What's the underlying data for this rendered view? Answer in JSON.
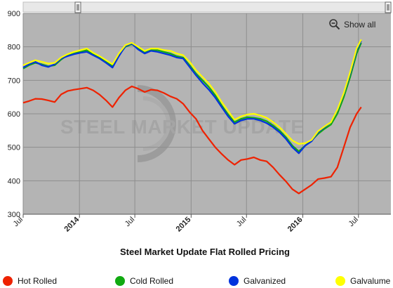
{
  "chart_data": {
    "type": "line",
    "title": "Steel Market Update Flat Rolled Pricing",
    "xlabel": "",
    "ylabel": "",
    "ylim": [
      300,
      900
    ],
    "y_ticks": [
      300,
      400,
      500,
      600,
      700,
      800,
      900
    ],
    "x_ticks": [
      {
        "label": "Jul",
        "date": "2013-07-01",
        "major": false
      },
      {
        "label": "2014",
        "date": "2014-01-01",
        "major": true
      },
      {
        "label": "Jul",
        "date": "2014-07-01",
        "major": false
      },
      {
        "label": "2015",
        "date": "2015-01-01",
        "major": true
      },
      {
        "label": "Jul",
        "date": "2015-07-01",
        "major": false
      },
      {
        "label": "2016",
        "date": "2016-01-01",
        "major": true
      },
      {
        "label": "Jul",
        "date": "2016-07-01",
        "major": false
      }
    ],
    "xlim": [
      "2013-07-01",
      "2016-10-15"
    ],
    "grid": true,
    "legend_position": "bottom",
    "series": [
      {
        "name": "Hot Rolled",
        "color": "#ee2200",
        "points": [
          [
            "2013-07-01",
            633
          ],
          [
            "2013-07-20",
            638
          ],
          [
            "2013-08-10",
            645
          ],
          [
            "2013-08-31",
            644
          ],
          [
            "2013-09-21",
            640
          ],
          [
            "2013-10-12",
            635
          ],
          [
            "2013-11-02",
            658
          ],
          [
            "2013-11-23",
            668
          ],
          [
            "2013-12-14",
            672
          ],
          [
            "2014-01-04",
            675
          ],
          [
            "2014-01-25",
            678
          ],
          [
            "2014-02-15",
            670
          ],
          [
            "2014-03-08",
            657
          ],
          [
            "2014-03-29",
            640
          ],
          [
            "2014-04-19",
            620
          ],
          [
            "2014-05-10",
            648
          ],
          [
            "2014-05-31",
            670
          ],
          [
            "2014-06-21",
            682
          ],
          [
            "2014-07-12",
            675
          ],
          [
            "2014-08-02",
            665
          ],
          [
            "2014-08-23",
            672
          ],
          [
            "2014-09-13",
            670
          ],
          [
            "2014-10-04",
            662
          ],
          [
            "2014-10-25",
            652
          ],
          [
            "2014-11-15",
            645
          ],
          [
            "2014-12-06",
            630
          ],
          [
            "2014-12-27",
            605
          ],
          [
            "2015-01-17",
            585
          ],
          [
            "2015-02-07",
            550
          ],
          [
            "2015-02-28",
            525
          ],
          [
            "2015-03-21",
            500
          ],
          [
            "2015-04-11",
            480
          ],
          [
            "2015-05-02",
            462
          ],
          [
            "2015-05-23",
            448
          ],
          [
            "2015-06-13",
            462
          ],
          [
            "2015-07-04",
            465
          ],
          [
            "2015-07-25",
            470
          ],
          [
            "2015-08-15",
            462
          ],
          [
            "2015-09-05",
            458
          ],
          [
            "2015-09-26",
            440
          ],
          [
            "2015-10-17",
            418
          ],
          [
            "2015-11-07",
            398
          ],
          [
            "2015-11-28",
            375
          ],
          [
            "2015-12-19",
            362
          ],
          [
            "2016-01-09",
            375
          ],
          [
            "2016-01-30",
            388
          ],
          [
            "2016-02-20",
            405
          ],
          [
            "2016-03-12",
            408
          ],
          [
            "2016-04-02",
            412
          ],
          [
            "2016-04-23",
            440
          ],
          [
            "2016-05-14",
            500
          ],
          [
            "2016-06-04",
            560
          ],
          [
            "2016-06-25",
            600
          ],
          [
            "2016-07-10",
            620
          ]
        ]
      },
      {
        "name": "Cold Rolled",
        "color": "#11aa11",
        "points": [
          [
            "2013-07-01",
            735
          ],
          [
            "2013-07-20",
            745
          ],
          [
            "2013-08-10",
            752
          ],
          [
            "2013-08-31",
            748
          ],
          [
            "2013-09-21",
            742
          ],
          [
            "2013-10-12",
            745
          ],
          [
            "2013-11-02",
            762
          ],
          [
            "2013-11-23",
            775
          ],
          [
            "2013-12-14",
            780
          ],
          [
            "2014-01-04",
            785
          ],
          [
            "2014-01-25",
            790
          ],
          [
            "2014-02-15",
            778
          ],
          [
            "2014-03-08",
            770
          ],
          [
            "2014-03-29",
            755
          ],
          [
            "2014-04-19",
            742
          ],
          [
            "2014-05-10",
            775
          ],
          [
            "2014-05-31",
            800
          ],
          [
            "2014-06-21",
            808
          ],
          [
            "2014-07-12",
            795
          ],
          [
            "2014-08-02",
            782
          ],
          [
            "2014-08-23",
            790
          ],
          [
            "2014-09-13",
            790
          ],
          [
            "2014-10-04",
            785
          ],
          [
            "2014-10-25",
            780
          ],
          [
            "2014-11-15",
            772
          ],
          [
            "2014-12-06",
            768
          ],
          [
            "2014-12-27",
            745
          ],
          [
            "2015-01-17",
            720
          ],
          [
            "2015-02-07",
            700
          ],
          [
            "2015-02-28",
            680
          ],
          [
            "2015-03-21",
            655
          ],
          [
            "2015-04-11",
            625
          ],
          [
            "2015-05-02",
            598
          ],
          [
            "2015-05-23",
            575
          ],
          [
            "2015-06-13",
            585
          ],
          [
            "2015-07-04",
            590
          ],
          [
            "2015-07-25",
            588
          ],
          [
            "2015-08-15",
            585
          ],
          [
            "2015-09-05",
            578
          ],
          [
            "2015-09-26",
            565
          ],
          [
            "2015-10-17",
            550
          ],
          [
            "2015-11-07",
            530
          ],
          [
            "2015-11-28",
            505
          ],
          [
            "2015-12-19",
            488
          ],
          [
            "2016-01-09",
            505
          ],
          [
            "2016-01-30",
            520
          ],
          [
            "2016-02-20",
            540
          ],
          [
            "2016-03-12",
            555
          ],
          [
            "2016-04-02",
            568
          ],
          [
            "2016-04-23",
            600
          ],
          [
            "2016-05-14",
            650
          ],
          [
            "2016-06-04",
            710
          ],
          [
            "2016-06-25",
            780
          ],
          [
            "2016-07-10",
            812
          ]
        ]
      },
      {
        "name": "Galvanized",
        "color": "#0033dd",
        "points": [
          [
            "2013-07-01",
            738
          ],
          [
            "2013-07-20",
            748
          ],
          [
            "2013-08-10",
            755
          ],
          [
            "2013-08-31",
            745
          ],
          [
            "2013-09-21",
            740
          ],
          [
            "2013-10-12",
            748
          ],
          [
            "2013-11-02",
            765
          ],
          [
            "2013-11-23",
            772
          ],
          [
            "2013-12-14",
            778
          ],
          [
            "2014-01-04",
            782
          ],
          [
            "2014-01-25",
            785
          ],
          [
            "2014-02-15",
            775
          ],
          [
            "2014-03-08",
            765
          ],
          [
            "2014-03-29",
            752
          ],
          [
            "2014-04-19",
            738
          ],
          [
            "2014-05-10",
            772
          ],
          [
            "2014-05-31",
            802
          ],
          [
            "2014-06-21",
            810
          ],
          [
            "2014-07-12",
            792
          ],
          [
            "2014-08-02",
            780
          ],
          [
            "2014-08-23",
            788
          ],
          [
            "2014-09-13",
            785
          ],
          [
            "2014-10-04",
            780
          ],
          [
            "2014-10-25",
            775
          ],
          [
            "2014-11-15",
            768
          ],
          [
            "2014-12-06",
            765
          ],
          [
            "2014-12-27",
            740
          ],
          [
            "2015-01-17",
            715
          ],
          [
            "2015-02-07",
            692
          ],
          [
            "2015-02-28",
            672
          ],
          [
            "2015-03-21",
            648
          ],
          [
            "2015-04-11",
            620
          ],
          [
            "2015-05-02",
            592
          ],
          [
            "2015-05-23",
            570
          ],
          [
            "2015-06-13",
            580
          ],
          [
            "2015-07-04",
            585
          ],
          [
            "2015-07-25",
            585
          ],
          [
            "2015-08-15",
            580
          ],
          [
            "2015-09-05",
            572
          ],
          [
            "2015-09-26",
            560
          ],
          [
            "2015-10-17",
            545
          ],
          [
            "2015-11-07",
            525
          ],
          [
            "2015-11-28",
            500
          ],
          [
            "2015-12-19",
            482
          ],
          [
            "2016-01-09",
            505
          ],
          [
            "2016-01-30",
            518
          ],
          [
            "2016-02-20",
            545
          ],
          [
            "2016-03-12",
            560
          ],
          [
            "2016-04-02",
            575
          ],
          [
            "2016-04-23",
            610
          ],
          [
            "2016-05-14",
            660
          ],
          [
            "2016-06-04",
            720
          ],
          [
            "2016-06-25",
            790
          ],
          [
            "2016-07-10",
            818
          ]
        ]
      },
      {
        "name": "Galvalume",
        "color": "#ffff00",
        "points": [
          [
            "2013-07-01",
            745
          ],
          [
            "2013-07-20",
            752
          ],
          [
            "2013-08-10",
            760
          ],
          [
            "2013-08-31",
            755
          ],
          [
            "2013-09-21",
            750
          ],
          [
            "2013-10-12",
            752
          ],
          [
            "2013-11-02",
            768
          ],
          [
            "2013-11-23",
            778
          ],
          [
            "2013-12-14",
            785
          ],
          [
            "2014-01-04",
            790
          ],
          [
            "2014-01-25",
            795
          ],
          [
            "2014-02-15",
            782
          ],
          [
            "2014-03-08",
            772
          ],
          [
            "2014-03-29",
            760
          ],
          [
            "2014-04-19",
            748
          ],
          [
            "2014-05-10",
            780
          ],
          [
            "2014-05-31",
            805
          ],
          [
            "2014-06-21",
            812
          ],
          [
            "2014-07-12",
            800
          ],
          [
            "2014-08-02",
            788
          ],
          [
            "2014-08-23",
            795
          ],
          [
            "2014-09-13",
            795
          ],
          [
            "2014-10-04",
            790
          ],
          [
            "2014-10-25",
            788
          ],
          [
            "2014-11-15",
            780
          ],
          [
            "2014-12-06",
            775
          ],
          [
            "2014-12-27",
            755
          ],
          [
            "2015-01-17",
            730
          ],
          [
            "2015-02-07",
            710
          ],
          [
            "2015-02-28",
            690
          ],
          [
            "2015-03-21",
            665
          ],
          [
            "2015-04-11",
            635
          ],
          [
            "2015-05-02",
            608
          ],
          [
            "2015-05-23",
            582
          ],
          [
            "2015-06-13",
            592
          ],
          [
            "2015-07-04",
            598
          ],
          [
            "2015-07-25",
            600
          ],
          [
            "2015-08-15",
            595
          ],
          [
            "2015-09-05",
            588
          ],
          [
            "2015-09-26",
            575
          ],
          [
            "2015-10-17",
            560
          ],
          [
            "2015-11-07",
            540
          ],
          [
            "2015-11-28",
            520
          ],
          [
            "2015-12-19",
            510
          ],
          [
            "2016-01-09",
            512
          ],
          [
            "2016-01-30",
            522
          ],
          [
            "2016-02-20",
            548
          ],
          [
            "2016-03-12",
            562
          ],
          [
            "2016-04-02",
            575
          ],
          [
            "2016-04-23",
            612
          ],
          [
            "2016-05-14",
            662
          ],
          [
            "2016-06-04",
            725
          ],
          [
            "2016-06-25",
            795
          ],
          [
            "2016-07-10",
            822
          ]
        ]
      }
    ],
    "watermark": {
      "text": "STEEL MARKET UPDATE"
    }
  },
  "controls": {
    "show_all_label": "Show all"
  }
}
